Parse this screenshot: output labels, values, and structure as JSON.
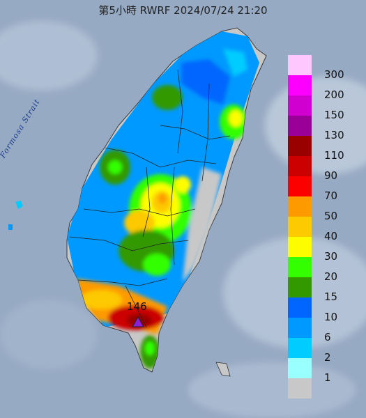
{
  "title": "第5小時  RWRF 2024/07/24 21:20",
  "sea_label": "Formosa Strait",
  "max_marker": {
    "value": "146",
    "color": "#8b1fd6"
  },
  "legend": {
    "levels": [
      {
        "label": "300",
        "color": "#fec8fe"
      },
      {
        "label": "200",
        "color": "#fd00fd"
      },
      {
        "label": "150",
        "color": "#d000d0"
      },
      {
        "label": "130",
        "color": "#9a0098"
      },
      {
        "label": "110",
        "color": "#990000"
      },
      {
        "label": "90",
        "color": "#cc0000"
      },
      {
        "label": "70",
        "color": "#fc0000"
      },
      {
        "label": "50",
        "color": "#fd9a00"
      },
      {
        "label": "40",
        "color": "#fdc900"
      },
      {
        "label": "30",
        "color": "#fdfd00"
      },
      {
        "label": "20",
        "color": "#33ff00"
      },
      {
        "label": "15",
        "color": "#339900"
      },
      {
        "label": "10",
        "color": "#0066ff"
      },
      {
        "label": "6",
        "color": "#0099ff"
      },
      {
        "label": "2",
        "color": "#00ccff"
      },
      {
        "label": "1",
        "color": "#99ffff"
      },
      {
        "label": "",
        "color": "#c8c8c8"
      }
    ]
  }
}
